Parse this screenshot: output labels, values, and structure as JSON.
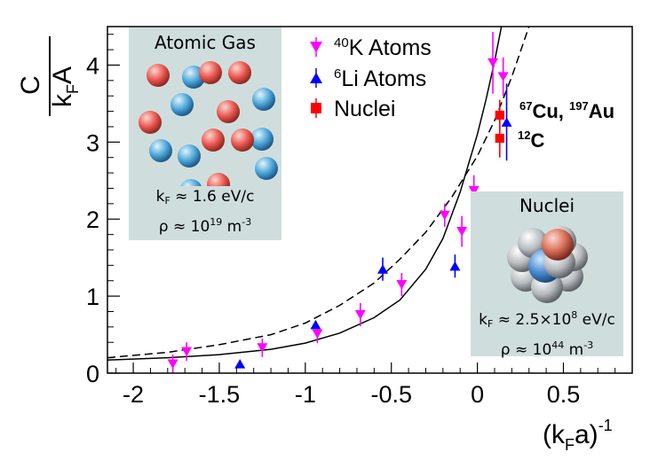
{
  "chart_data": {
    "type": "scatter",
    "xlim": [
      -2.15,
      0.9
    ],
    "ylim": [
      0,
      4.5
    ],
    "xticks": [
      "-2",
      "-1.5",
      "-1",
      "-0.5",
      "0",
      "0.5"
    ],
    "yticks": [
      "0",
      "1",
      "2",
      "3",
      "4"
    ],
    "xlabel": {
      "base": "(k",
      "sub": "F",
      "mid": "a)",
      "sup": "-1"
    },
    "ylabel": {
      "numerator": "C",
      "den_k": "k",
      "den_sub": "F",
      "den_a": "A"
    },
    "series": [
      {
        "name": "K Atoms",
        "sup": "40",
        "marker": "triangle-down",
        "color": "#ff00ff",
        "points": [
          {
            "x": -1.77,
            "y": 0.12,
            "err": 0.12
          },
          {
            "x": -1.69,
            "y": 0.28,
            "err": 0.12
          },
          {
            "x": -1.25,
            "y": 0.33,
            "err": 0.12
          },
          {
            "x": -0.93,
            "y": 0.51,
            "err": 0.12
          },
          {
            "x": -0.68,
            "y": 0.76,
            "err": 0.15
          },
          {
            "x": -0.44,
            "y": 1.15,
            "err": 0.15
          },
          {
            "x": -0.19,
            "y": 2.05,
            "err": 0.15
          },
          {
            "x": -0.09,
            "y": 1.84,
            "err": 0.2
          },
          {
            "x": -0.02,
            "y": 2.37,
            "err": 0.2
          },
          {
            "x": 0.09,
            "y": 4.03,
            "err": 0.4
          },
          {
            "x": 0.15,
            "y": 3.85,
            "err": 0.25
          }
        ]
      },
      {
        "name": "Li Atoms",
        "sup": "6",
        "marker": "triangle-up",
        "color": "#0000ff",
        "points": [
          {
            "x": -1.38,
            "y": 0.12,
            "err": 0.0
          },
          {
            "x": -0.94,
            "y": 0.63,
            "err": 0.05
          },
          {
            "x": -0.55,
            "y": 1.35,
            "err": 0.15
          },
          {
            "x": -0.13,
            "y": 1.39,
            "err": 0.15
          },
          {
            "x": 0.17,
            "y": 3.26,
            "err": 0.5
          }
        ]
      },
      {
        "name": "Nuclei",
        "marker": "square",
        "color": "#ff0000",
        "points": [
          {
            "x": 0.13,
            "y": 3.35,
            "err": 0.2
          },
          {
            "x": 0.13,
            "y": 3.05,
            "err": 0.25
          }
        ]
      }
    ],
    "curves": [
      {
        "style": "solid",
        "points": [
          [
            -2.15,
            0.17
          ],
          [
            -1.8,
            0.2
          ],
          [
            -1.5,
            0.24
          ],
          [
            -1.2,
            0.31
          ],
          [
            -1.0,
            0.39
          ],
          [
            -0.8,
            0.52
          ],
          [
            -0.6,
            0.72
          ],
          [
            -0.45,
            0.95
          ],
          [
            -0.3,
            1.35
          ],
          [
            -0.2,
            1.75
          ],
          [
            -0.1,
            2.35
          ],
          [
            0.0,
            3.1
          ],
          [
            0.05,
            3.55
          ],
          [
            0.1,
            4.05
          ],
          [
            0.14,
            4.5
          ]
        ]
      },
      {
        "style": "dashed",
        "points": [
          [
            -2.15,
            0.2
          ],
          [
            -1.8,
            0.27
          ],
          [
            -1.5,
            0.37
          ],
          [
            -1.2,
            0.5
          ],
          [
            -1.0,
            0.65
          ],
          [
            -0.8,
            0.88
          ],
          [
            -0.6,
            1.17
          ],
          [
            -0.45,
            1.48
          ],
          [
            -0.3,
            1.83
          ],
          [
            -0.15,
            2.28
          ],
          [
            0.0,
            2.82
          ],
          [
            0.1,
            3.28
          ],
          [
            0.2,
            3.85
          ],
          [
            0.3,
            4.5
          ]
        ]
      }
    ],
    "annotations": [
      {
        "id": "cu-au",
        "parts": [
          [
            "sup",
            "67"
          ],
          [
            "text",
            "Cu, "
          ],
          [
            "sup",
            "197"
          ],
          [
            "text",
            "Au"
          ]
        ]
      },
      {
        "id": "c12",
        "parts": [
          [
            "sup",
            "12"
          ],
          [
            "text",
            "C"
          ]
        ]
      }
    ]
  },
  "insets": {
    "atomic_gas": {
      "title": "Atomic Gas",
      "kf_prefix": "k",
      "kf_sub": "F",
      "kf_value": " ≈ 1.6 eV/c",
      "rho_prefix": "ρ ≈ 10",
      "rho_sup": "19",
      "rho_unit": " m",
      "rho_unit_sup": "-3"
    },
    "nuclei": {
      "title": "Nuclei",
      "kf_prefix": "k",
      "kf_sub": "F",
      "kf_value": " ≈ 2.5×10",
      "kf_sup": "8",
      "kf_unit": " eV/c",
      "rho_prefix": "ρ ≈ 10",
      "rho_sup": "44",
      "rho_unit": " m",
      "rho_unit_sup": "-3"
    }
  },
  "colors": {
    "atom_red": "#e8534d",
    "atom_blue": "#4aa3d6",
    "inset_bg": "#cfdedd"
  }
}
